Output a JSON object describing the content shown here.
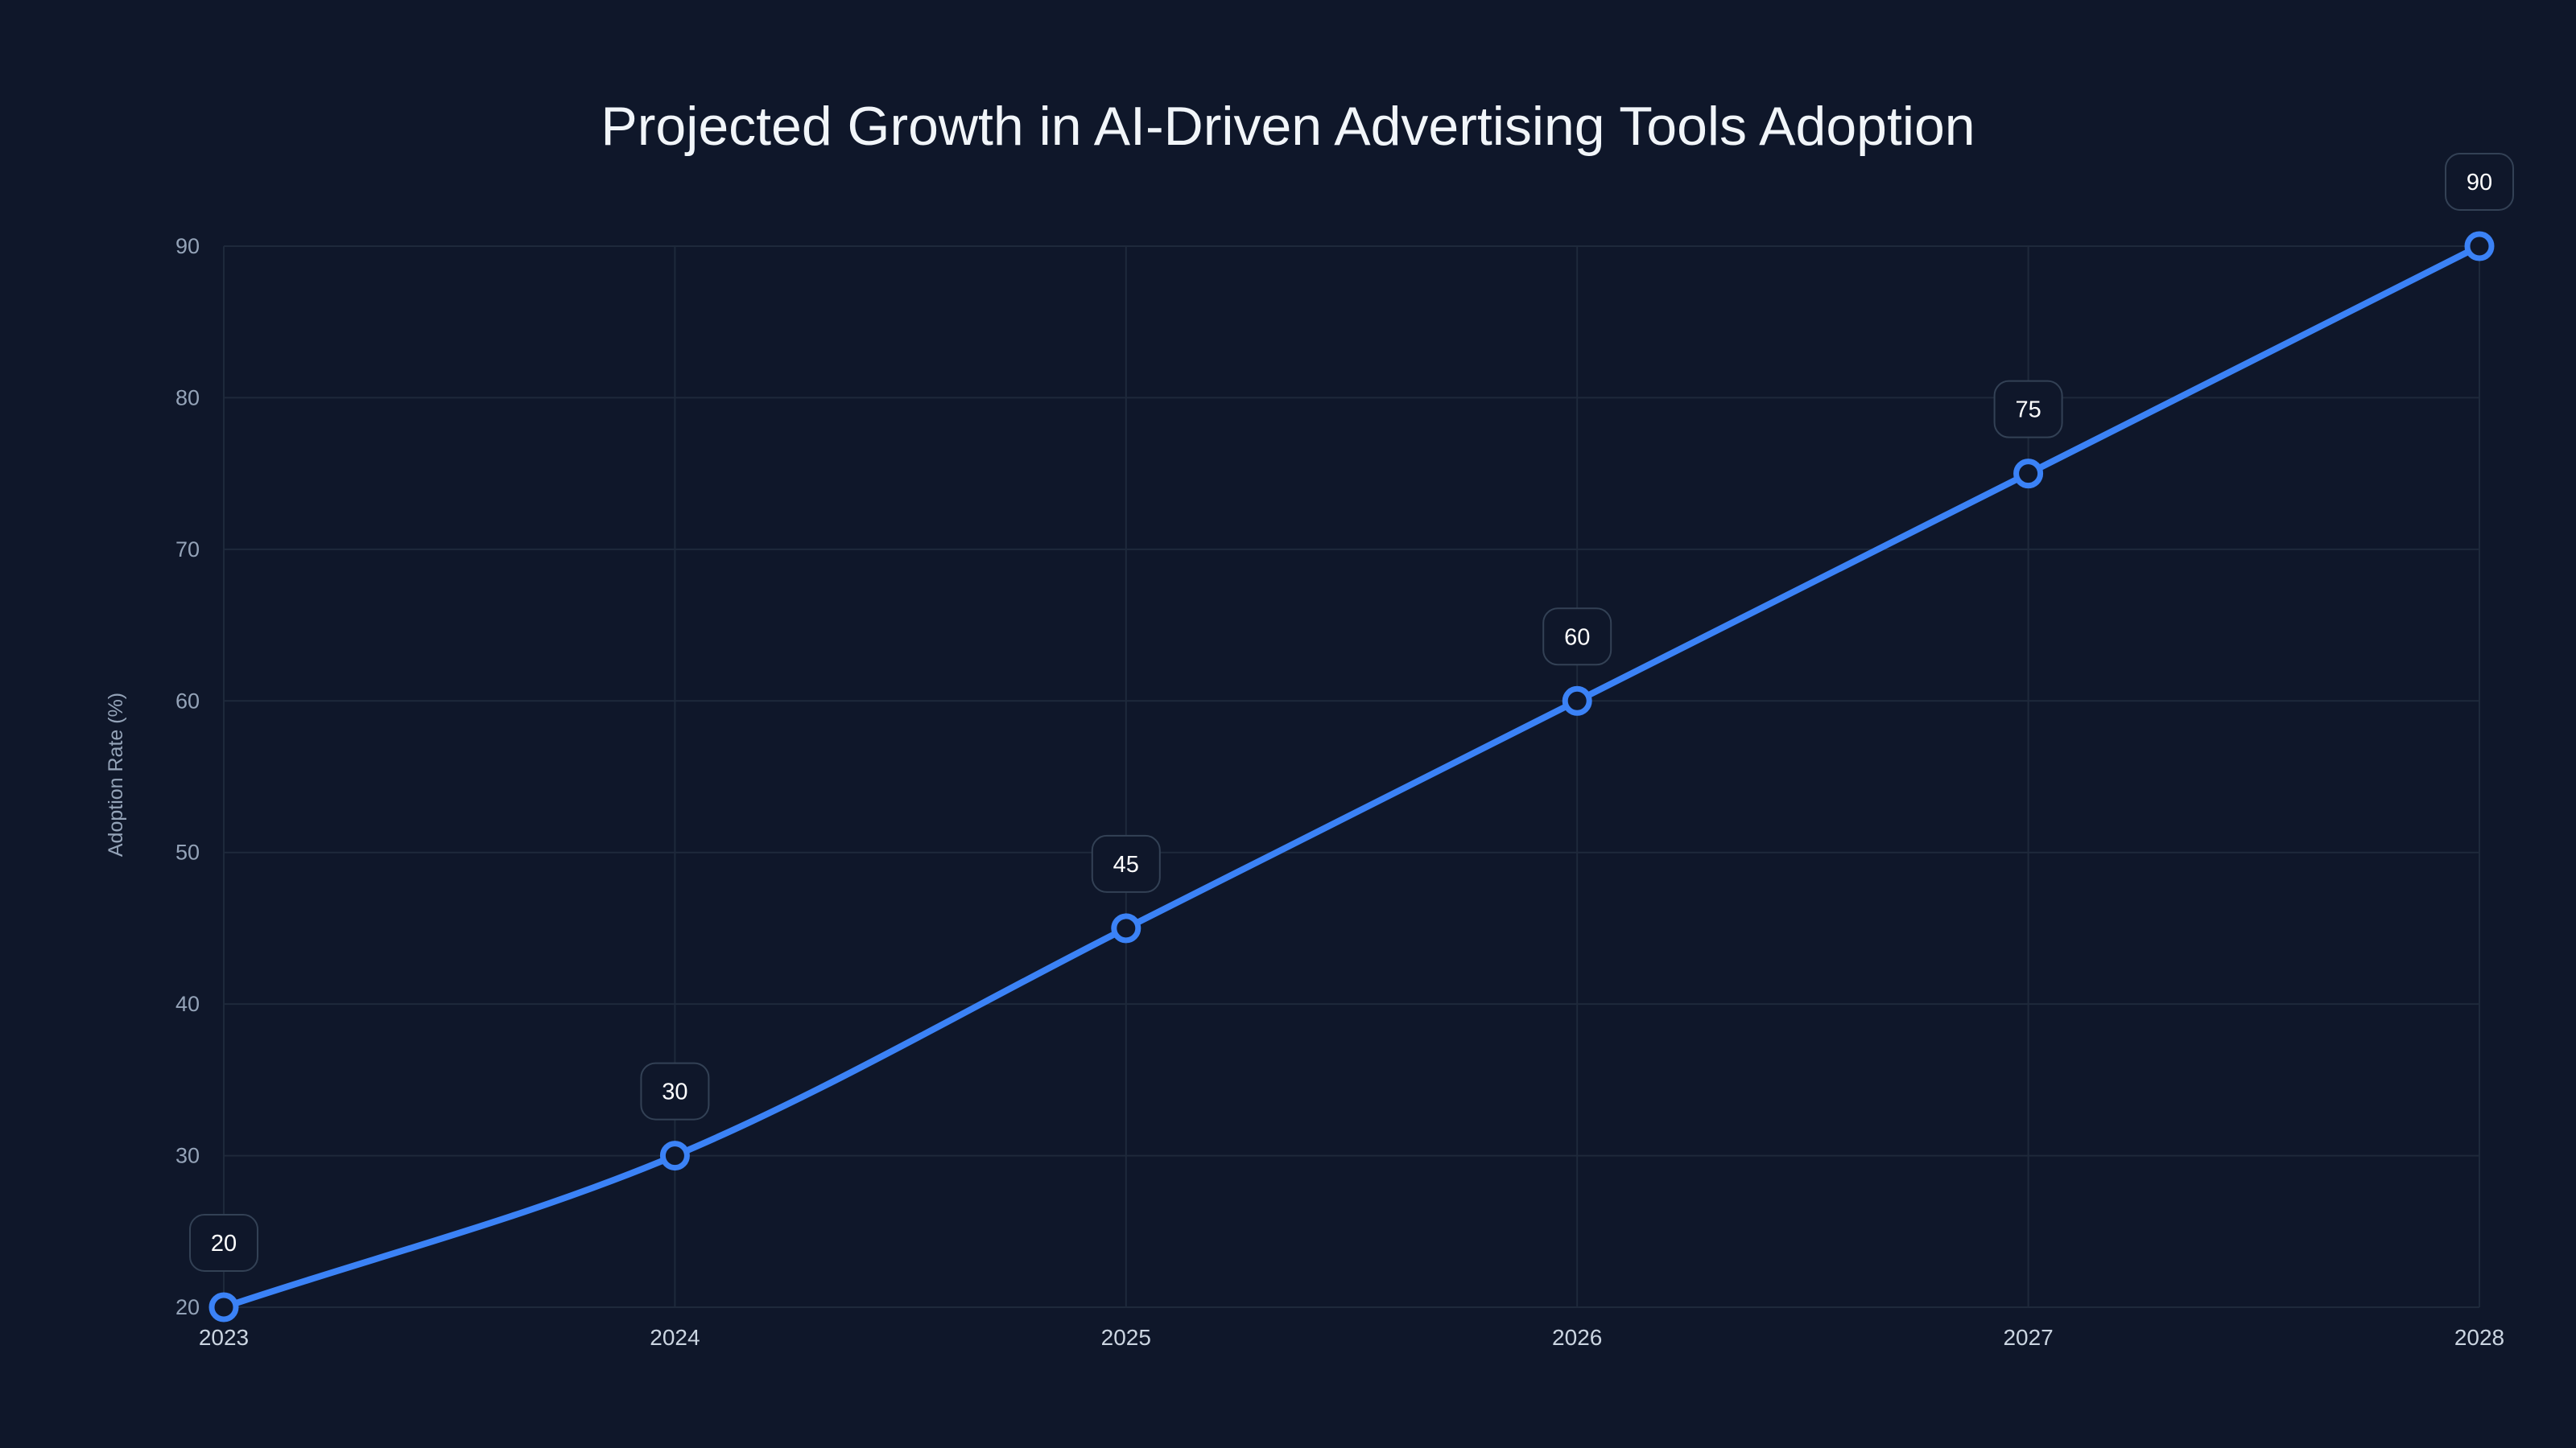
{
  "chart_data": {
    "type": "line",
    "title": "Projected Growth in AI-Driven Advertising Tools Adoption",
    "xlabel": "",
    "ylabel": "Adoption Rate (%)",
    "x": [
      "2023",
      "2024",
      "2025",
      "2026",
      "2027",
      "2028"
    ],
    "series": [
      {
        "name": "Adoption Rate (%)",
        "values": [
          20,
          30,
          45,
          60,
          75,
          90
        ]
      }
    ],
    "ylim": [
      20,
      90
    ],
    "yticks": [
      20,
      30,
      40,
      50,
      60,
      70,
      80,
      90
    ],
    "grid": true,
    "data_labels": [
      "20",
      "30",
      "45",
      "60",
      "75",
      "90"
    ],
    "colors": {
      "background": "#0f172a",
      "line": "#3b82f6",
      "grid": "#1e293b",
      "tick_text": "#94a3b8",
      "title": "#f1f5f9"
    }
  }
}
